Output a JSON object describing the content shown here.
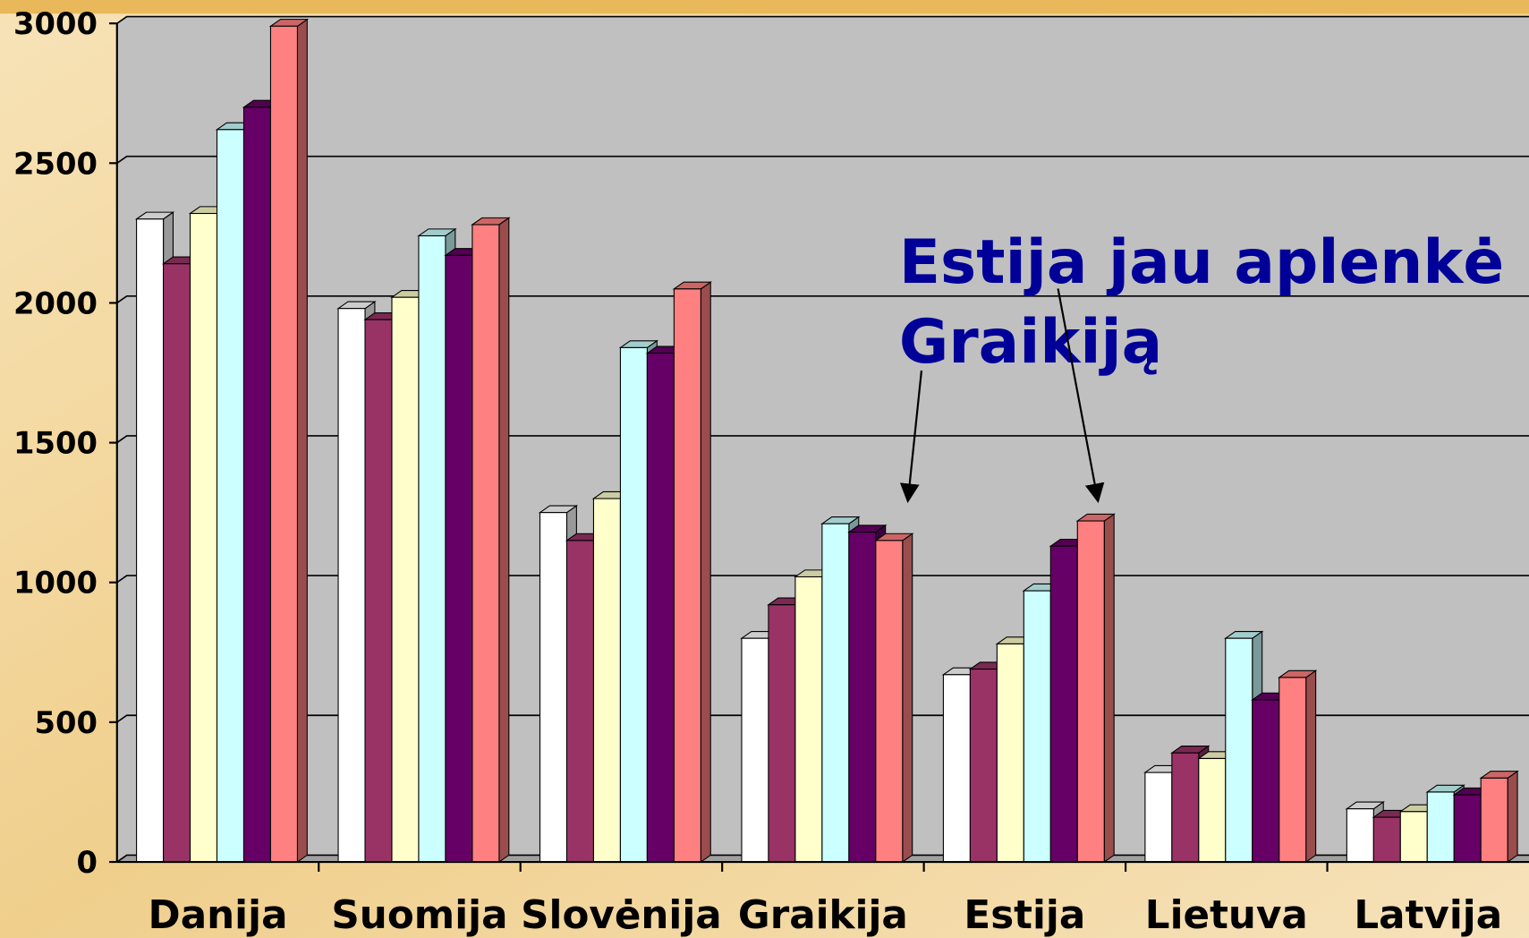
{
  "chart_data": {
    "type": "bar3d",
    "categories": [
      "Danija",
      "Suomija",
      "Slovėnija",
      "Graikija",
      "Estija",
      "Lietuva",
      "Latvija"
    ],
    "series": [
      {
        "color": "#ffffff",
        "values": [
          2300,
          1980,
          1250,
          800,
          670,
          320,
          190
        ]
      },
      {
        "color": "#993366",
        "values": [
          2140,
          1940,
          1150,
          920,
          690,
          390,
          160
        ]
      },
      {
        "color": "#ffffcc",
        "values": [
          2320,
          2020,
          1300,
          1020,
          780,
          370,
          180
        ]
      },
      {
        "color": "#ccffff",
        "values": [
          2620,
          2240,
          1840,
          1210,
          970,
          800,
          250
        ]
      },
      {
        "color": "#660066",
        "values": [
          2700,
          2170,
          1820,
          1180,
          1130,
          580,
          240
        ]
      },
      {
        "color": "#ff8080",
        "values": [
          2990,
          2280,
          2050,
          1150,
          1220,
          660,
          300
        ]
      }
    ],
    "ylim": [
      0,
      3000
    ],
    "yticks": [
      0,
      500,
      1000,
      1500,
      2000,
      2500,
      3000
    ],
    "grid": true,
    "annotation": [
      "Estija jau aplenkė",
      "Graikiją"
    ]
  }
}
